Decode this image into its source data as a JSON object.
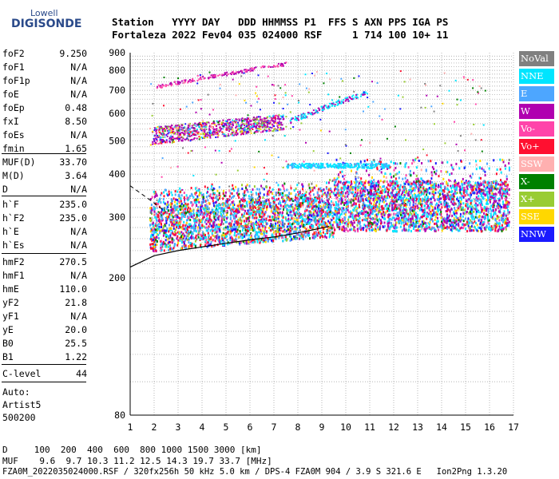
{
  "logo": {
    "line1": "Lowell",
    "line2": "DIGISONDE"
  },
  "header": {
    "line1": "Station   YYYY DAY   DDD HHMMSS P1  FFS S AXN PPS IGA PS",
    "line2": "Fortaleza 2022 Fev04 035 024000 RSF     1 714 100 10+ 11"
  },
  "params": [
    {
      "name": "foF2",
      "value": "9.250"
    },
    {
      "name": "foF1",
      "value": "N/A"
    },
    {
      "name": "foF1p",
      "value": "N/A"
    },
    {
      "name": "foE",
      "value": "N/A"
    },
    {
      "name": "foEp",
      "value": "0.48"
    },
    {
      "name": "fxI",
      "value": "8.50"
    },
    {
      "name": "foEs",
      "value": "N/A"
    },
    {
      "name": "fmin",
      "value": "1.65"
    },
    {
      "name": "MUF(D)",
      "value": "33.70"
    },
    {
      "name": "M(D)",
      "value": "3.64"
    },
    {
      "name": "D",
      "value": "N/A"
    },
    {
      "name": "h`F",
      "value": "235.0"
    },
    {
      "name": "h`F2",
      "value": "235.0"
    },
    {
      "name": "h`E",
      "value": "N/A"
    },
    {
      "name": "h`Es",
      "value": "N/A"
    },
    {
      "name": "hmF2",
      "value": "270.5"
    },
    {
      "name": "hmF1",
      "value": "N/A"
    },
    {
      "name": "hmE",
      "value": "110.0"
    },
    {
      "name": "yF2",
      "value": "21.8"
    },
    {
      "name": "yF1",
      "value": "N/A"
    },
    {
      "name": "yE",
      "value": "20.0"
    },
    {
      "name": "B0",
      "value": "25.5"
    },
    {
      "name": "B1",
      "value": "1.22"
    },
    {
      "name": "C-level",
      "value": "44"
    }
  ],
  "auto": {
    "line1": "Auto:",
    "line2": "Artist5",
    "line3": "500200"
  },
  "legend": [
    {
      "label": "NoVal",
      "bg": "#808080",
      "fg": "#ffffff"
    },
    {
      "label": "NNE",
      "bg": "#00e5ff",
      "fg": "#ffffff"
    },
    {
      "label": "E",
      "bg": "#4da6ff",
      "fg": "#ffffff"
    },
    {
      "label": "W",
      "bg": "#b000b0",
      "fg": "#ffffff"
    },
    {
      "label": "Vo-",
      "bg": "#ff44aa",
      "fg": "#ffffff"
    },
    {
      "label": "Vo+",
      "bg": "#ff1030",
      "fg": "#ffffff"
    },
    {
      "label": "SSW",
      "bg": "#ffb0b0",
      "fg": "#ffffff"
    },
    {
      "label": "X-",
      "bg": "#008000",
      "fg": "#ffffff"
    },
    {
      "label": "X+",
      "bg": "#99cc33",
      "fg": "#ffffff"
    },
    {
      "label": "SSE",
      "bg": "#ffd700",
      "fg": "#ffffff"
    },
    {
      "label": "NNW",
      "bg": "#1a1aff",
      "fg": "#ffffff"
    }
  ],
  "footer": {
    "line1": "D     100  200  400  600  800 1000 1500 3000 [km]",
    "line2": "MUF    9.6  9.7 10.3 11.2 12.5 14.3 19.7 33.7 [MHz]",
    "line3": "FZA0M_2022035024000.RSF / 320fx256h 50 kHz 5.0 km / DPS-4 FZA0M 904 / 3.9 S 321.6 E   Ion2Png 1.3.20"
  },
  "chart_data": {
    "type": "scatter",
    "title": "",
    "xlabel": "",
    "ylabel": "",
    "xlim": [
      1,
      17
    ],
    "ylim": [
      80,
      900
    ],
    "y_scale": "log",
    "x_ticks": [
      1,
      2,
      3,
      4,
      5,
      6,
      7,
      8,
      9,
      10,
      11,
      12,
      13,
      14,
      15,
      16,
      17
    ],
    "y_ticks": [
      80,
      200,
      300,
      400,
      500,
      600,
      700,
      800,
      900
    ],
    "grid": true,
    "legend_position": "right",
    "traces": [
      {
        "name": "F2 echo band",
        "freq_mhz": [
          1.8,
          17
        ],
        "height_km": [
          270,
          330
        ]
      },
      {
        "name": "second-hop band",
        "freq_mhz": [
          1.8,
          9.0
        ],
        "height_km": [
          480,
          620
        ]
      },
      {
        "name": "oblique band",
        "freq_mhz": [
          2.0,
          7.5
        ],
        "height_km": [
          700,
          840
        ]
      },
      {
        "name": "E-like layer",
        "freq_mhz": [
          7.5,
          9.5
        ],
        "height_km": [
          420,
          430
        ]
      }
    ],
    "profile_curve": {
      "freq_mhz": [
        1.0,
        2.0,
        3.0,
        4.0,
        5.0,
        6.0,
        7.0,
        8.0,
        9.3
      ],
      "height_km": [
        215,
        232,
        240,
        246,
        252,
        258,
        263,
        270,
        282
      ]
    },
    "dashed_curve": {
      "freq_mhz": [
        1.0,
        2.0,
        2.5
      ],
      "height_km": [
        370,
        330,
        310
      ]
    }
  }
}
